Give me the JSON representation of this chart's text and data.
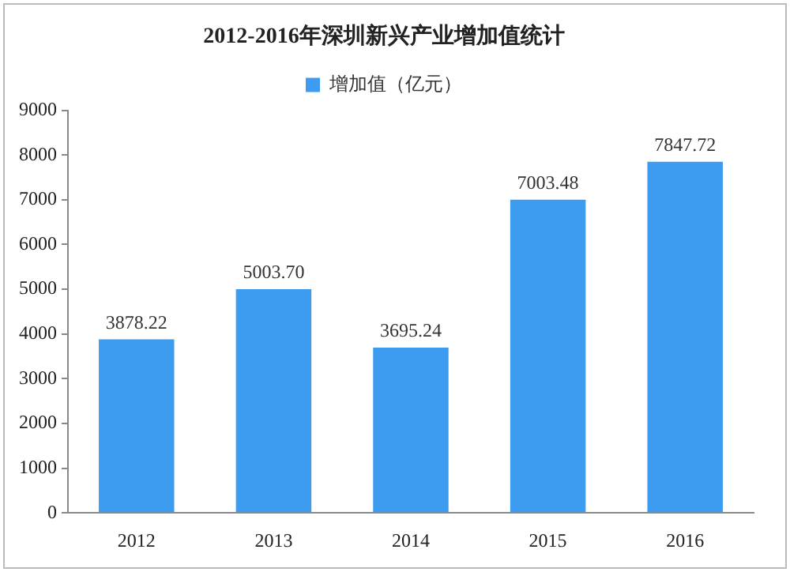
{
  "chart_data": {
    "type": "bar",
    "title": "2012-2016年深圳新兴产业增加值统计",
    "categories": [
      "2012",
      "2013",
      "2014",
      "2015",
      "2016"
    ],
    "series": [
      {
        "name": "增加值（亿元）",
        "color": "#3d9cf0",
        "values": [
          3878.22,
          5003.7,
          3695.24,
          7003.48,
          7847.72
        ]
      }
    ],
    "value_labels": [
      "3878.22",
      "5003.70",
      "3695.24",
      "7003.48",
      "7847.72"
    ],
    "ylim": [
      0,
      9000
    ],
    "yticks": [
      0,
      1000,
      2000,
      3000,
      4000,
      5000,
      6000,
      7000,
      8000,
      9000
    ],
    "grid": false,
    "legend": "top"
  }
}
